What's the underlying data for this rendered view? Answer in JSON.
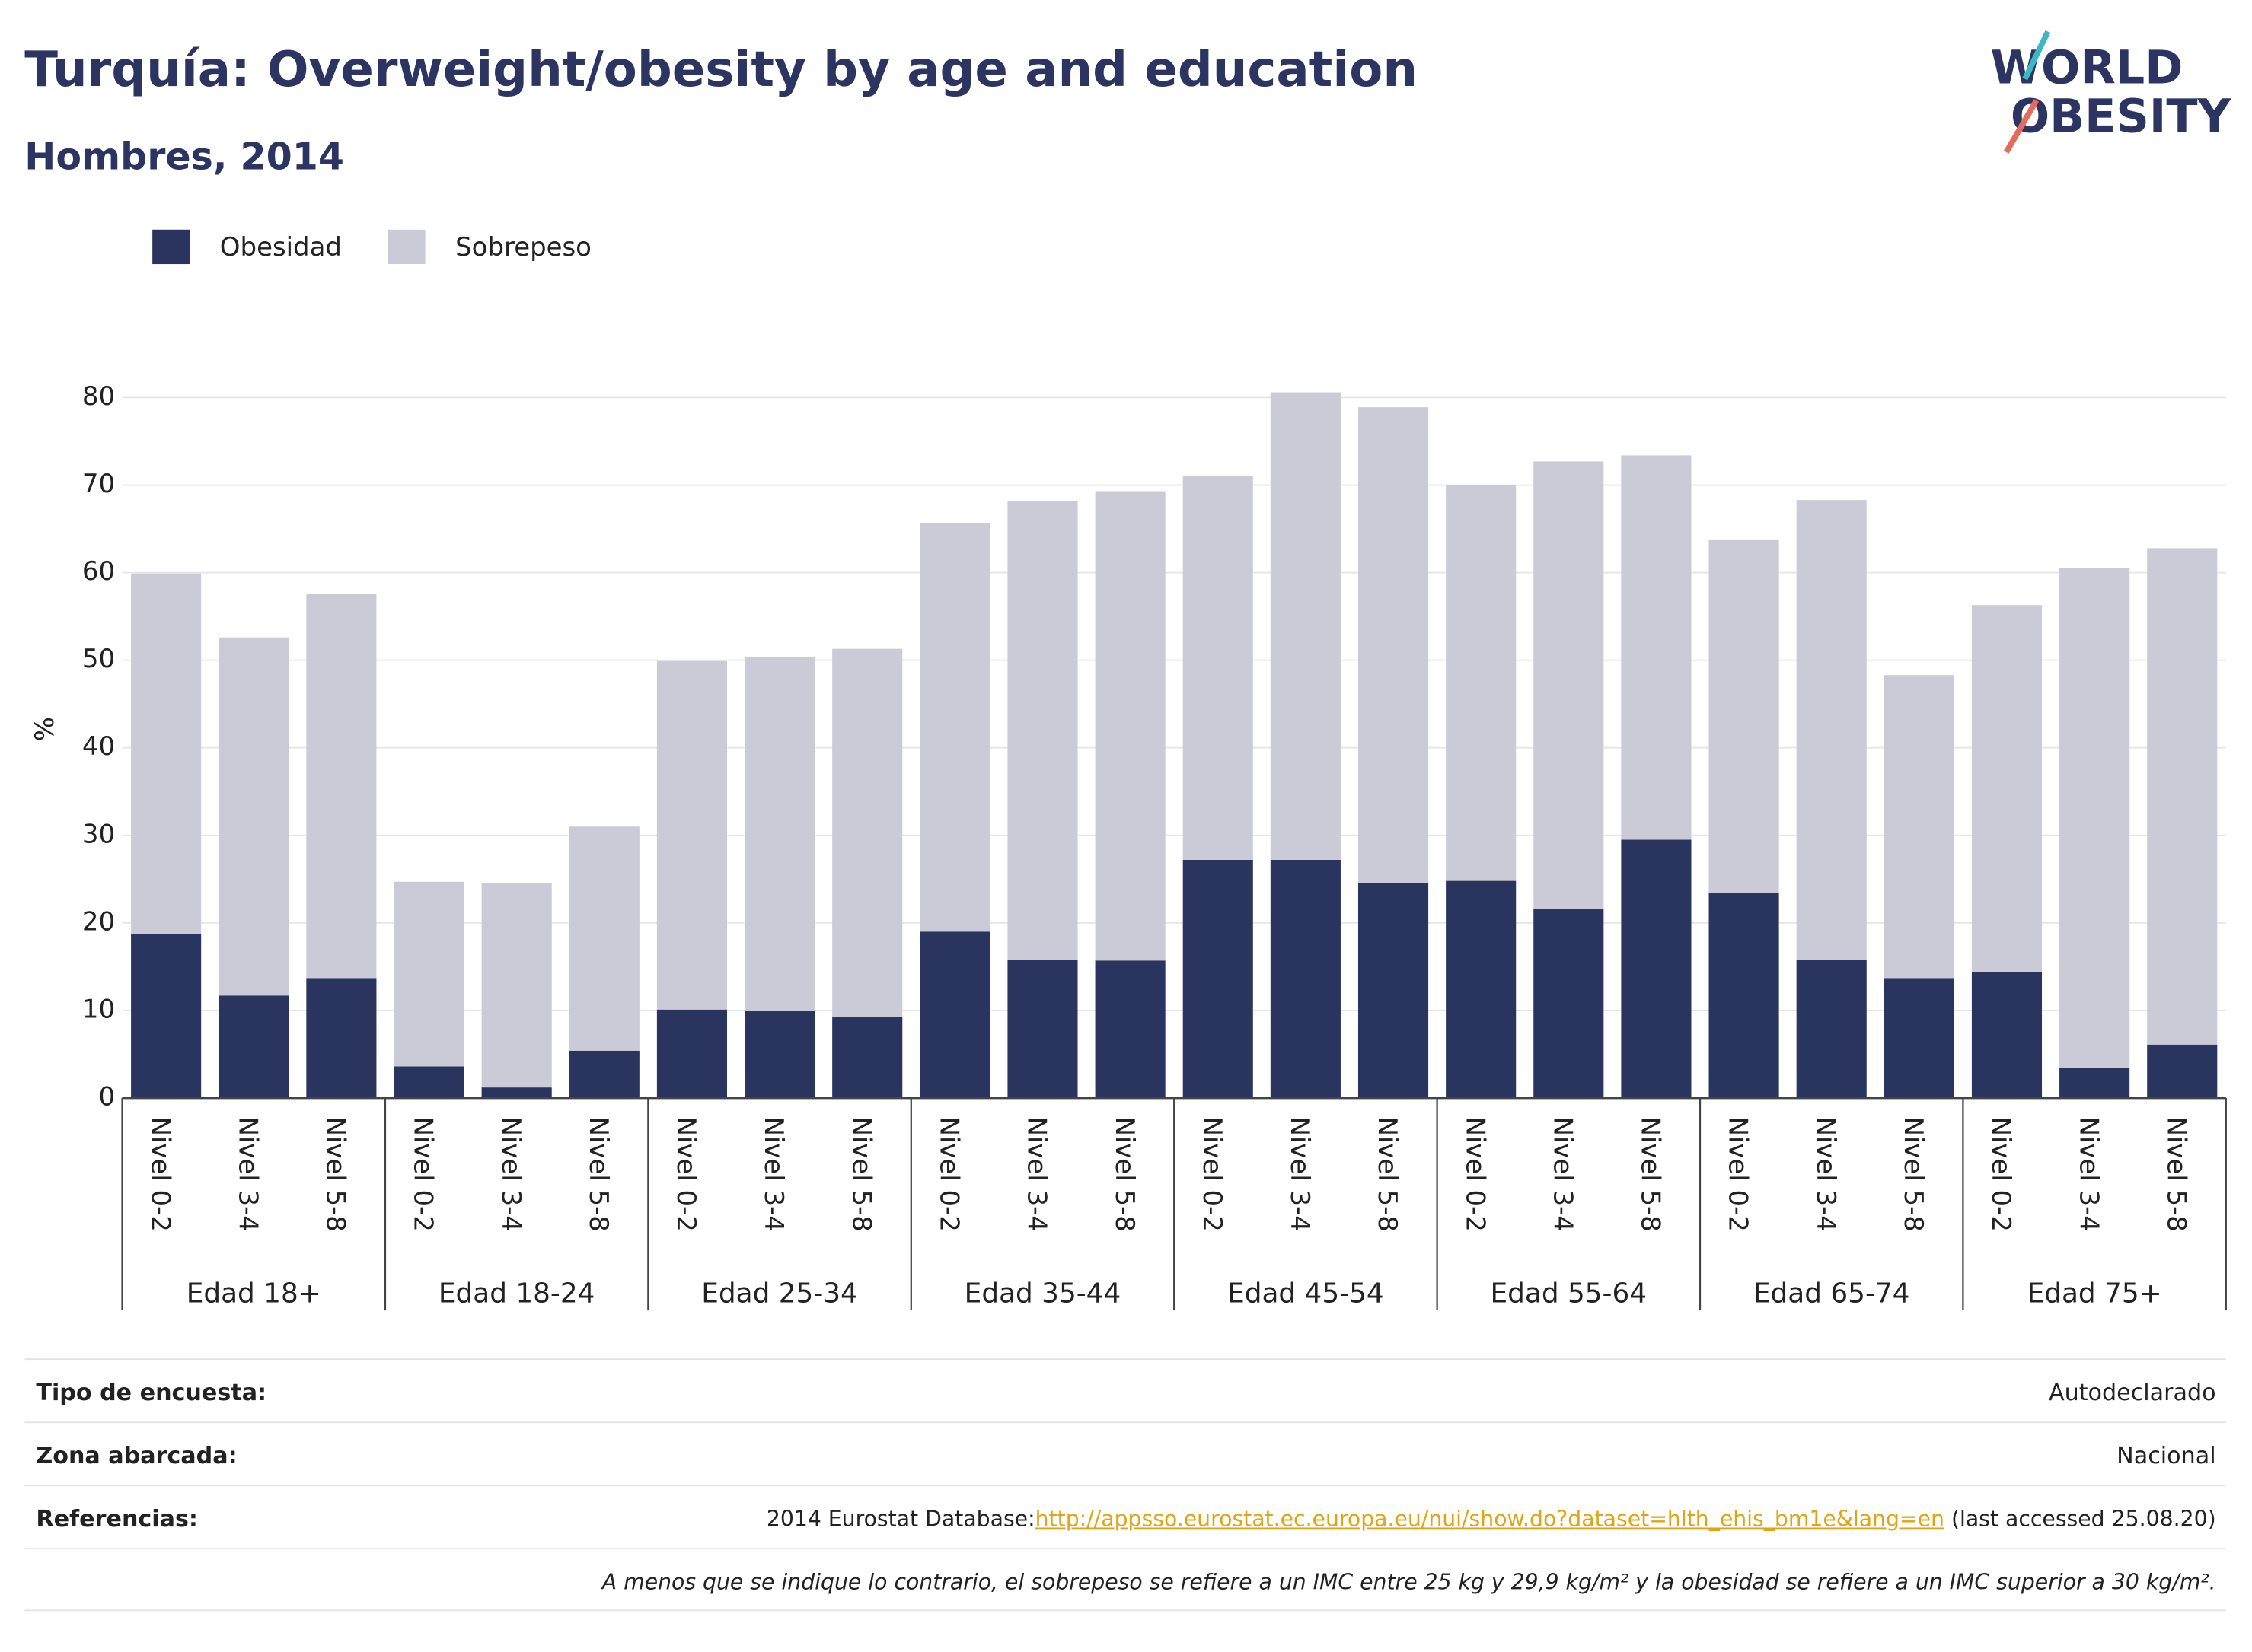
{
  "chart_data": {
    "type": "bar",
    "stacked": true,
    "title": "Turquía: Overweight/obesity by age and education",
    "subtitle": "Hombres, 2014",
    "logo": [
      "WORLD",
      "OBESITY"
    ],
    "y_label": "%",
    "groups": [
      {
        "name": "Edad 18+",
        "categories": [
          "Nivel 0-2",
          "Nivel 3-4",
          "Nivel 5-8"
        ]
      },
      {
        "name": "Edad 18-24",
        "categories": [
          "Nivel 0-2",
          "Nivel 3-4",
          "Nivel 5-8"
        ]
      },
      {
        "name": "Edad 25-34",
        "categories": [
          "Nivel 0-2",
          "Nivel 3-4",
          "Nivel 5-8"
        ]
      },
      {
        "name": "Edad 35-44",
        "categories": [
          "Nivel 0-2",
          "Nivel 3-4",
          "Nivel 5-8"
        ]
      },
      {
        "name": "Edad 45-54",
        "categories": [
          "Nivel 0-2",
          "Nivel 3-4",
          "Nivel 5-8"
        ]
      },
      {
        "name": "Edad 55-64",
        "categories": [
          "Nivel 0-2",
          "Nivel 3-4",
          "Nivel 5-8"
        ]
      },
      {
        "name": "Edad 65-74",
        "categories": [
          "Nivel 0-2",
          "Nivel 3-4",
          "Nivel 5-8"
        ]
      },
      {
        "name": "Edad 75+",
        "categories": [
          "Nivel 0-2",
          "Nivel 3-4",
          "Nivel 5-8"
        ]
      }
    ],
    "series": [
      {
        "name": "Obesidad",
        "color": "#29345f",
        "values": [
          18.7,
          11.7,
          13.7,
          3.6,
          1.2,
          5.4,
          10.1,
          10.0,
          9.3,
          19.0,
          15.8,
          15.7,
          27.2,
          27.2,
          24.6,
          24.8,
          21.6,
          29.5,
          23.4,
          15.8,
          13.7,
          14.4,
          3.4,
          6.1
        ]
      },
      {
        "name": "Sobrepeso",
        "color": "#cacbd7",
        "values": [
          41.2,
          40.9,
          43.9,
          21.1,
          23.3,
          25.6,
          39.8,
          40.4,
          42.0,
          46.7,
          52.4,
          53.6,
          43.8,
          53.4,
          54.3,
          45.2,
          51.1,
          43.9,
          40.4,
          52.5,
          34.6,
          41.9,
          57.1,
          56.7
        ]
      }
    ],
    "ylim": [
      0,
      83
    ],
    "yticks": [
      0,
      10,
      20,
      30,
      40,
      50,
      60,
      70,
      80
    ],
    "grid": true,
    "legend": "top-left"
  },
  "footer": {
    "rows": [
      {
        "label": "Tipo de encuesta:",
        "value": "Autodeclarado"
      },
      {
        "label": "Zona abarcada:",
        "value": "Nacional"
      },
      {
        "label": "Referencias:",
        "value": "2014 Eurostat Database:",
        "link": "http://appsso.eurostat.ec.europa.eu/nui/show.do?dataset=hlth_ehis_bm1e&lang=en",
        "suffix": " (last accessed 25.08.20)"
      }
    ],
    "note": "A menos que se indique lo contrario, el sobrepeso se refiere a un IMC entre 25 kg y 29,9 kg/m² y la obesidad se refiere a un IMC superior a 30 kg/m²."
  }
}
